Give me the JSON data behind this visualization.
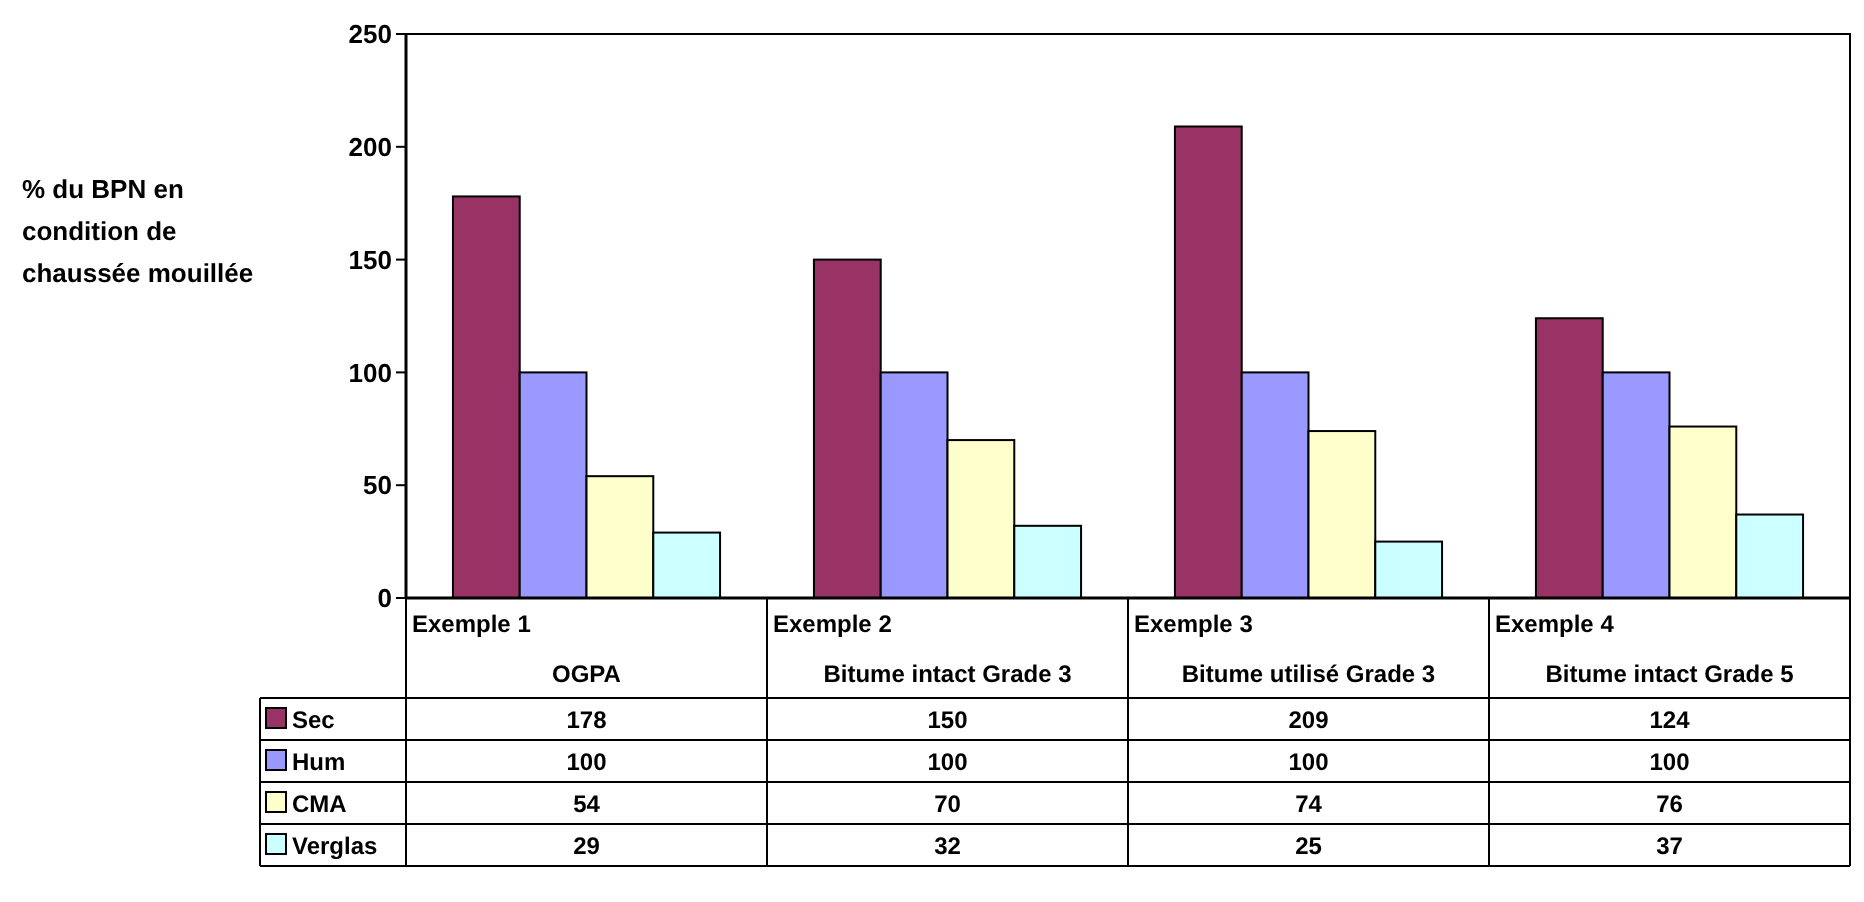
{
  "chart_data": {
    "type": "bar",
    "ylabel": "% du BPN en condition de chaussée mouillée",
    "categories": [
      "Exemple 1\nOGPA",
      "Exemple 2\nBitume intact Grade 3",
      "Exemple 3\nBitume utilisé Grade 3",
      "Exemple 4\nBitume intact Grade 5"
    ],
    "series": [
      {
        "name": "Sec",
        "color": "#993366",
        "values": [
          178,
          150,
          209,
          124
        ]
      },
      {
        "name": "Hum",
        "color": "#9999ff",
        "values": [
          100,
          100,
          100,
          100
        ]
      },
      {
        "name": "CMA",
        "color": "#ffffcc",
        "values": [
          54,
          70,
          74,
          76
        ]
      },
      {
        "name": "Verglas",
        "color": "#ccffff",
        "values": [
          29,
          32,
          25,
          37
        ]
      }
    ],
    "ylim": [
      0,
      250
    ],
    "yticks": [
      0,
      50,
      100,
      150,
      200,
      250
    ],
    "legend": "bottom",
    "data_labels": true
  }
}
